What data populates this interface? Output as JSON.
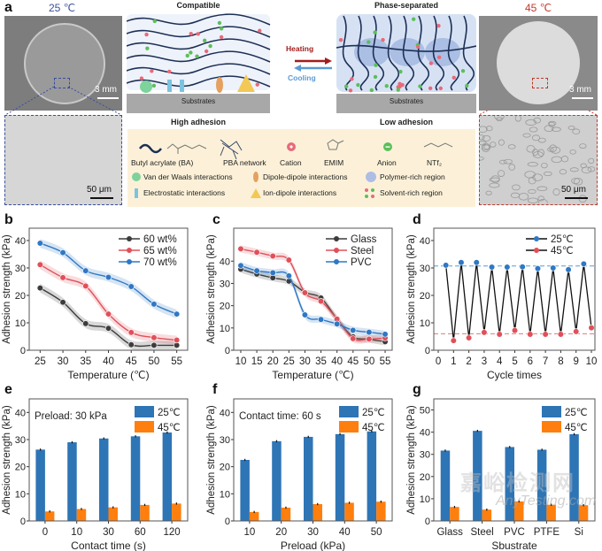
{
  "panel_labels": [
    "a",
    "b",
    "c",
    "d",
    "e",
    "f",
    "g"
  ],
  "figure_a": {
    "left_temp": "25 ℃",
    "right_temp": "45 ℃",
    "scale_mm": "3 mm",
    "scale_um": "50 μm",
    "compatible": "Compatible",
    "phase_separated": "Phase-separated",
    "heating": "Heating",
    "cooling": "Cooling",
    "substrates": "Substrates",
    "high_adhesion": "High adhesion",
    "low_adhesion": "Low adhesion",
    "legend": {
      "ba": "Butyl acrylate (BA)",
      "pba": "PBA network",
      "cation": "Cation",
      "emim": "EMIM",
      "anion": "Anion",
      "ntf2": "NTf₂",
      "vdw": "Van der Waals interactions",
      "dipole": "Dipole-dipole interactions",
      "polymer_rich": "Polymer-rich region",
      "electrostatic": "Electrostatic interactions",
      "ion_dipole": "Ion-dipole interactions",
      "solvent_rich": "Solvent-rich region"
    },
    "colors": {
      "cold": "#3a4f9e",
      "hot": "#c0392b",
      "heating_arrow": "#a11d1d",
      "cooling_arrow": "#5b9bd5"
    }
  },
  "watermark": {
    "cn": "嘉峪检测网",
    "en": "AnyTesting.com"
  },
  "chart_data": [
    {
      "panel": "b",
      "type": "line",
      "xlabel": "Temperature (℃)",
      "ylabel": "Adhesion strength (kPa)",
      "xlim": [
        22.6,
        57.4
      ],
      "ylim": [
        0,
        44.5
      ],
      "xticks": [
        "25",
        "30",
        "35",
        "40",
        "45",
        "50",
        "55"
      ],
      "yticks": [
        "0",
        "10",
        "20",
        "30",
        "40"
      ],
      "legend": "top-right",
      "shaded_band": true,
      "series": [
        {
          "name": "60 wt%",
          "color": "#3c3c3c",
          "x": [
            25,
            30,
            35,
            40,
            45,
            50,
            55
          ],
          "y": [
            22.7,
            17.5,
            9.7,
            8.0,
            2.0,
            1.8,
            1.8
          ]
        },
        {
          "name": "65 wt%",
          "color": "#e0505a",
          "x": [
            25,
            30,
            35,
            40,
            45,
            50,
            55
          ],
          "y": [
            31.2,
            26.5,
            23.4,
            13.2,
            6.5,
            4.6,
            3.7
          ]
        },
        {
          "name": "70 wt%",
          "color": "#2f78c4",
          "x": [
            25,
            30,
            35,
            40,
            45,
            50,
            55
          ],
          "y": [
            39.0,
            35.6,
            29.0,
            26.6,
            23.2,
            16.8,
            13.2
          ]
        }
      ]
    },
    {
      "panel": "c",
      "type": "line",
      "xlabel": "Temperature (℃)",
      "ylabel": "Adhesion strength (kPa)",
      "xlim": [
        7.8,
        57.2
      ],
      "ylim": [
        0,
        54.8
      ],
      "xticks": [
        "10",
        "15",
        "20",
        "25",
        "30",
        "35",
        "40",
        "45",
        "50",
        "55"
      ],
      "yticks": [
        "0",
        "10",
        "20",
        "30",
        "40"
      ],
      "legend": "top-right",
      "shaded_band": true,
      "series": [
        {
          "name": "Glass",
          "color": "#3c3c3c",
          "x": [
            10,
            15,
            20,
            25,
            30,
            35,
            40,
            45,
            50,
            55
          ],
          "y": [
            36.4,
            34.2,
            32.5,
            31.0,
            26.0,
            23.5,
            14.0,
            6.0,
            5.0,
            3.8
          ]
        },
        {
          "name": "Steel",
          "color": "#e0505a",
          "x": [
            10,
            15,
            20,
            25,
            30,
            35,
            40,
            45,
            50,
            55
          ],
          "y": [
            45.5,
            44.0,
            42.3,
            40.5,
            25.8,
            22.0,
            14.0,
            5.2,
            5.0,
            5.5
          ]
        },
        {
          "name": "PVC",
          "color": "#2f78c4",
          "x": [
            10,
            15,
            20,
            25,
            30,
            35,
            40,
            45,
            50,
            55
          ],
          "y": [
            38.0,
            35.7,
            34.8,
            33.4,
            15.9,
            13.8,
            11.8,
            9.0,
            8.1,
            7.2
          ]
        }
      ]
    },
    {
      "panel": "d",
      "type": "line",
      "xlabel": "Cycle times",
      "ylabel": "Adhesion strength (kPa)",
      "xlim": [
        -0.29,
        10.23
      ],
      "ylim": [
        0,
        44.5
      ],
      "xticks": [
        "0",
        "1",
        "2",
        "3",
        "4",
        "5",
        "6",
        "7",
        "8",
        "9",
        "10"
      ],
      "yticks": [
        "0",
        "10",
        "20",
        "30",
        "40"
      ],
      "legend": "top-right",
      "reference_lines": [
        30.7,
        6.0
      ],
      "connector_color": "#111111",
      "series": [
        {
          "name": "25℃",
          "color": "#2f78c4",
          "x": [
            0.5,
            1.5,
            2.5,
            3.5,
            4.5,
            5.5,
            6.5,
            7.5,
            8.5,
            9.5
          ],
          "y": [
            31.0,
            32.0,
            32.0,
            30.3,
            30.3,
            30.4,
            29.8,
            30.0,
            29.4,
            31.5
          ]
        },
        {
          "name": "45℃",
          "color": "#e0505a",
          "x": [
            1,
            2,
            3,
            4,
            5,
            6,
            7,
            8,
            9,
            10
          ],
          "y": [
            3.5,
            4.5,
            6.5,
            5.8,
            7.2,
            5.8,
            5.8,
            5.8,
            6.8,
            8.2
          ]
        }
      ]
    },
    {
      "panel": "e",
      "type": "bar",
      "xlabel": "Contact time (s)",
      "ylabel": "Adhesion strength (kPa)",
      "ylim": [
        0,
        45
      ],
      "yticks": [
        "0",
        "10",
        "20",
        "30",
        "40"
      ],
      "categories": [
        "0",
        "10",
        "30",
        "60",
        "120"
      ],
      "annotation": "Preload: 30 kPa",
      "legend": "top-right",
      "series": [
        {
          "name": "25℃",
          "color": "#2e75b6",
          "values": [
            26.3,
            29.0,
            30.4,
            31.2,
            32.6
          ]
        },
        {
          "name": "45℃",
          "color": "#ff7f0e",
          "values": [
            3.5,
            4.4,
            5.0,
            5.9,
            6.4
          ]
        }
      ]
    },
    {
      "panel": "f",
      "type": "bar",
      "xlabel": "Preload (kPa)",
      "ylabel": "Adhesion strength (kPa)",
      "ylim": [
        0,
        45
      ],
      "yticks": [
        "0",
        "10",
        "20",
        "30",
        "40"
      ],
      "categories": [
        "10",
        "20",
        "30",
        "40",
        "50"
      ],
      "annotation": "Contact time: 60 s",
      "legend": "top-right",
      "series": [
        {
          "name": "25℃",
          "color": "#2e75b6",
          "values": [
            22.5,
            29.4,
            31.0,
            32.0,
            33.0
          ]
        },
        {
          "name": "45℃",
          "color": "#ff7f0e",
          "values": [
            3.3,
            4.9,
            6.2,
            6.7,
            7.1
          ]
        }
      ]
    },
    {
      "panel": "g",
      "type": "bar",
      "xlabel": "Sbustrate",
      "ylabel": "Adhesion strength (kPa)",
      "ylim": [
        0,
        55
      ],
      "yticks": [
        "0",
        "10",
        "20",
        "30",
        "40",
        "50"
      ],
      "categories": [
        "Glass",
        "Steel",
        "PVC",
        "PTFE",
        "Si"
      ],
      "legend": "top-right",
      "series": [
        {
          "name": "25℃",
          "color": "#2e75b6",
          "values": [
            31.7,
            40.6,
            33.3,
            32.1,
            39.1
          ]
        },
        {
          "name": "45℃",
          "color": "#ff7f0e",
          "values": [
            6.3,
            5.1,
            8.8,
            7.3,
            7.1
          ]
        }
      ]
    }
  ]
}
